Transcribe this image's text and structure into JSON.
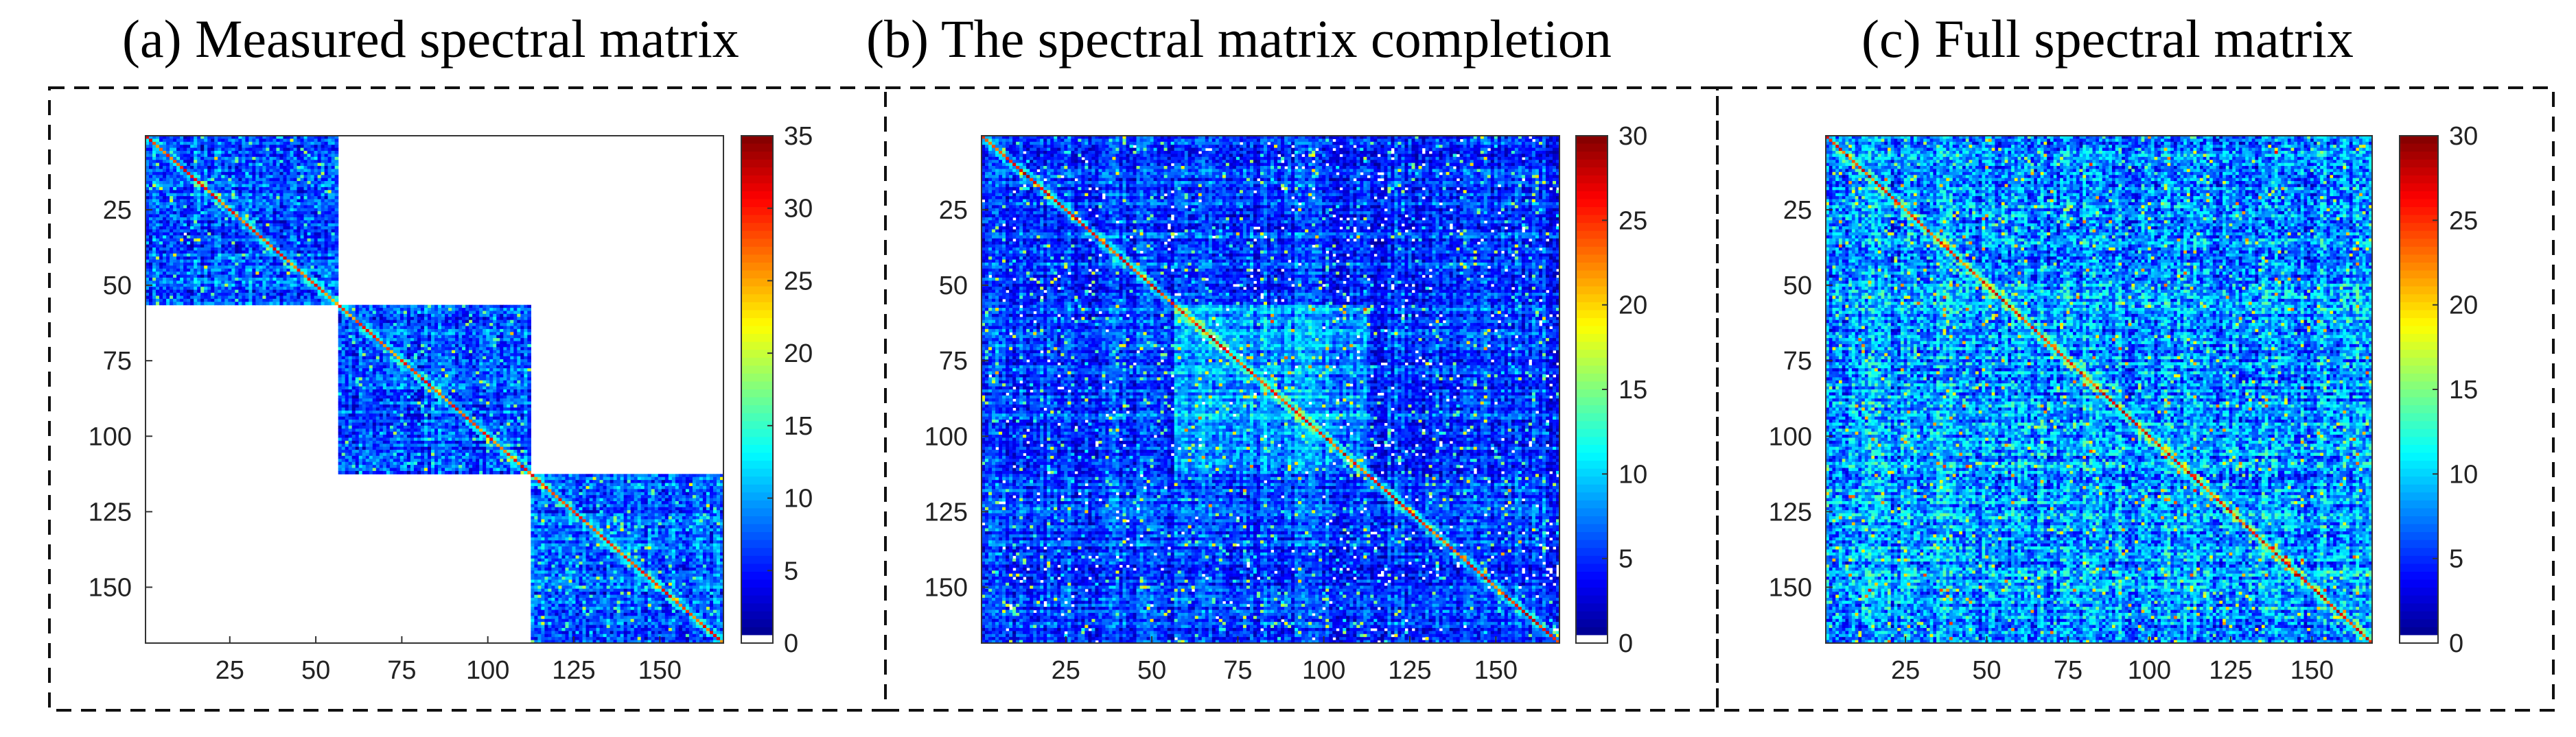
{
  "titles": {
    "a": "(a) Measured spectral matrix",
    "b": "(b)  The spectral matrix completion",
    "c": "(c) Full spectral matrix"
  },
  "chart_data": [
    {
      "type": "heatmap",
      "title": "(a) Measured spectral matrix",
      "size": 168,
      "x_ticks": [
        25,
        50,
        75,
        100,
        125,
        150
      ],
      "y_ticks": [
        25,
        50,
        75,
        100,
        125,
        150
      ],
      "colorbar": {
        "min": 0,
        "max": 35,
        "ticks": [
          0,
          5,
          10,
          15,
          20,
          25,
          30,
          35
        ]
      },
      "structure": "block-diagonal",
      "blocks": [
        [
          1,
          56
        ],
        [
          57,
          112
        ],
        [
          113,
          168
        ]
      ],
      "off_block_value": "empty (white)",
      "diagonal_typical": 28,
      "background_typical": 8
    },
    {
      "type": "heatmap",
      "title": "(b)  The spectral matrix completion",
      "size": 168,
      "x_ticks": [
        25,
        50,
        75,
        100,
        125,
        150
      ],
      "y_ticks": [
        25,
        50,
        75,
        100,
        125,
        150
      ],
      "colorbar": {
        "min": 0,
        "max": 30,
        "ticks": [
          0,
          5,
          10,
          15,
          20,
          25,
          30
        ]
      },
      "structure": "full, completed",
      "diagonal_typical": 25,
      "background_typical": 6
    },
    {
      "type": "heatmap",
      "title": "(c) Full spectral matrix",
      "size": 168,
      "x_ticks": [
        25,
        50,
        75,
        100,
        125,
        150
      ],
      "y_ticks": [
        25,
        50,
        75,
        100,
        125,
        150
      ],
      "colorbar": {
        "min": 0,
        "max": 30,
        "ticks": [
          0,
          5,
          10,
          15,
          20,
          25,
          30
        ]
      },
      "structure": "full",
      "diagonal_typical": 25,
      "background_typical": 9
    }
  ]
}
